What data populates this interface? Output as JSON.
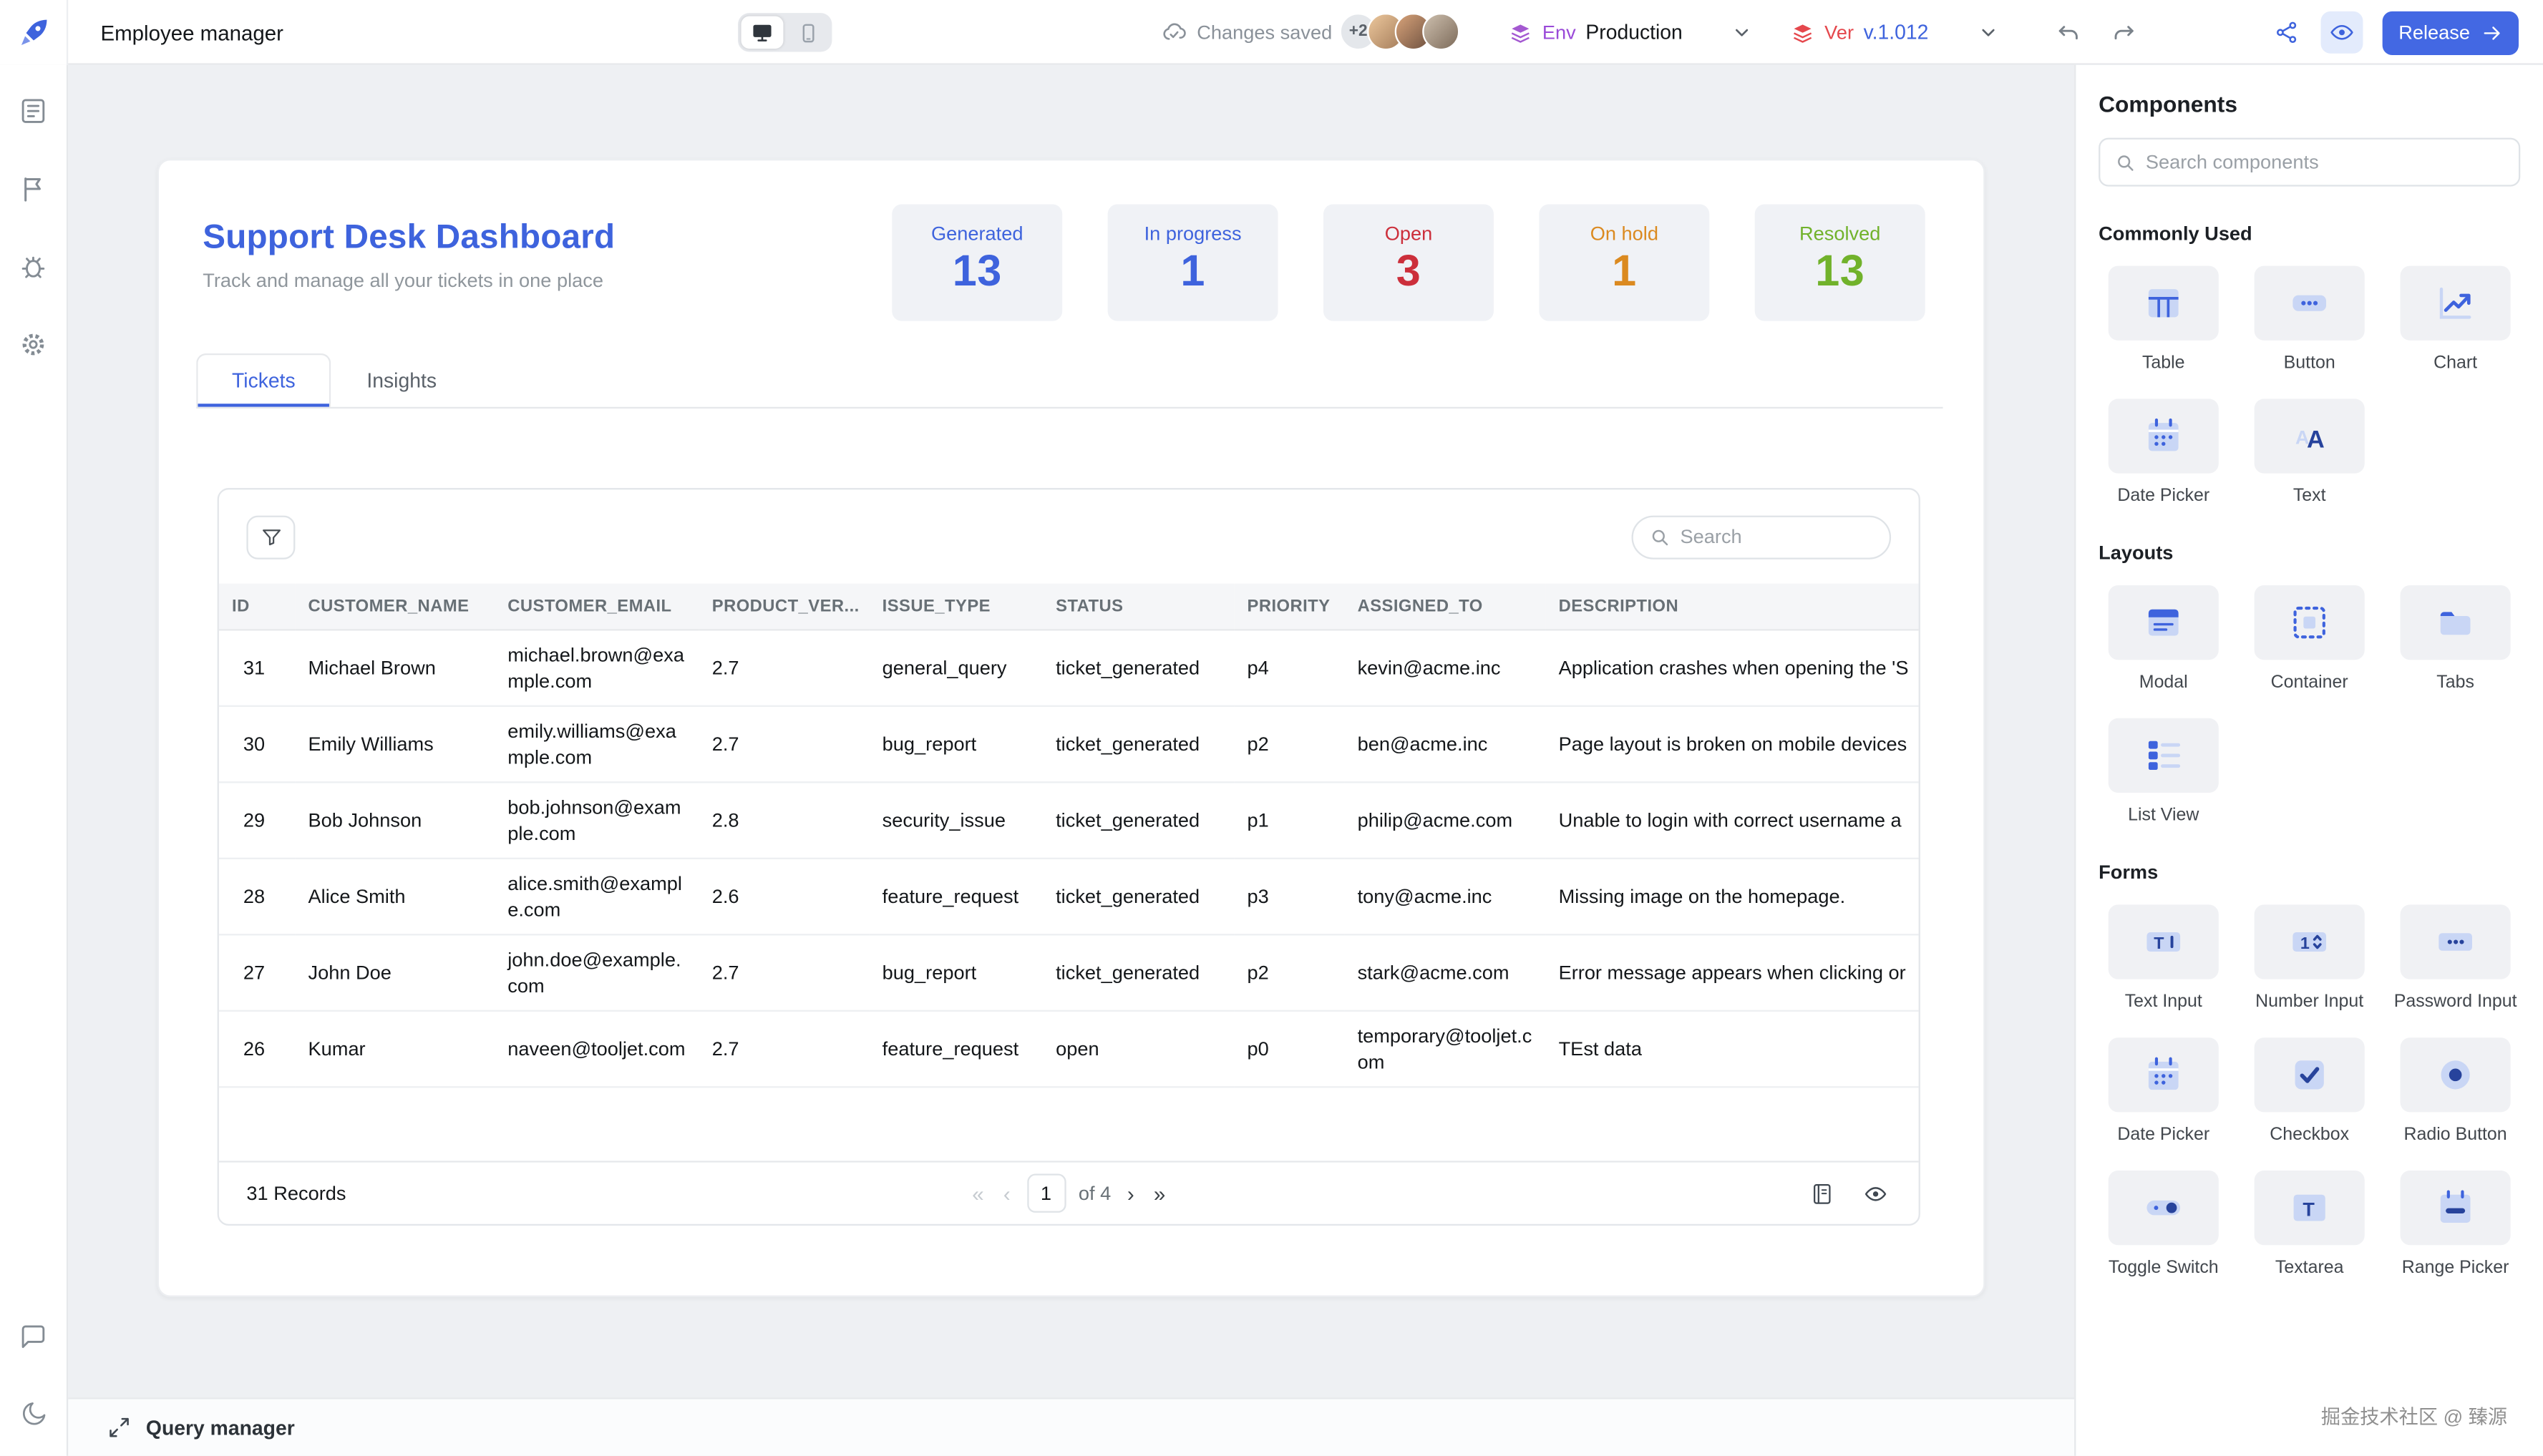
{
  "header": {
    "app_title": "Employee manager",
    "changes_saved": "Changes saved",
    "avatar_overflow": "+2",
    "env_label": "Env",
    "env_value": "Production",
    "ver_label": "Ver",
    "ver_value": "v.1.012",
    "release_label": "Release"
  },
  "canvas": {
    "page_title": "Support Desk Dashboard",
    "page_subtitle": "Track and manage all your tickets in one place",
    "stats": [
      {
        "label": "Generated",
        "value": "13",
        "color": "#3E63DD"
      },
      {
        "label": "In progress",
        "value": "1",
        "color": "#3E63DD"
      },
      {
        "label": "Open",
        "value": "3",
        "color": "#CC2F3B"
      },
      {
        "label": "On hold",
        "value": "1",
        "color": "#DB8A20"
      },
      {
        "label": "Resolved",
        "value": "13",
        "color": "#71B22B"
      }
    ],
    "tabs": [
      {
        "label": "Tickets",
        "active": true
      },
      {
        "label": "Insights",
        "active": false
      }
    ],
    "table": {
      "search_placeholder": "Search",
      "columns": [
        "ID",
        "CUSTOMER_NAME",
        "CUSTOMER_EMAIL",
        "PRODUCT_VER...",
        "ISSUE_TYPE",
        "STATUS",
        "PRIORITY",
        "ASSIGNED_TO",
        "DESCRIPTION"
      ],
      "rows": [
        {
          "id": "31",
          "name": "Michael Brown",
          "email": "michael.brown@example.com",
          "version": "2.7",
          "issue": "general_query",
          "status": "ticket_generated",
          "priority": "p4",
          "assigned": "kevin@acme.inc",
          "description": "Application crashes when opening the 'S"
        },
        {
          "id": "30",
          "name": "Emily Williams",
          "email": "emily.williams@example.com",
          "version": "2.7",
          "issue": "bug_report",
          "status": "ticket_generated",
          "priority": "p2",
          "assigned": "ben@acme.inc",
          "description": "Page layout is broken on mobile devices"
        },
        {
          "id": "29",
          "name": "Bob Johnson",
          "email": "bob.johnson@example.com",
          "version": "2.8",
          "issue": "security_issue",
          "status": "ticket_generated",
          "priority": "p1",
          "assigned": "philip@acme.com",
          "description": "Unable to login with correct username a"
        },
        {
          "id": "28",
          "name": "Alice Smith",
          "email": "alice.smith@example.com",
          "version": "2.6",
          "issue": "feature_request",
          "status": "ticket_generated",
          "priority": "p3",
          "assigned": "tony@acme.inc",
          "description": "Missing image on the homepage."
        },
        {
          "id": "27",
          "name": "John Doe",
          "email": "john.doe@example.com",
          "version": "2.7",
          "issue": "bug_report",
          "status": "ticket_generated",
          "priority": "p2",
          "assigned": "stark@acme.com",
          "description": "Error message appears when clicking or"
        },
        {
          "id": "26",
          "name": "Kumar",
          "email": "naveen@tooljet.com",
          "version": "2.7",
          "issue": "feature_request",
          "status": "open",
          "priority": "p0",
          "assigned": "temporary@tooljet.com",
          "description": "TEst data"
        }
      ],
      "records_text": "31 Records",
      "pagination": {
        "first": "«",
        "prev": "‹",
        "current": "1",
        "of_text": "of 4",
        "next": "›",
        "last": "»"
      }
    },
    "query_manager_label": "Query manager"
  },
  "components_panel": {
    "title": "Components",
    "search_placeholder": "Search components",
    "commonly_used": {
      "title": "Commonly Used",
      "items": [
        {
          "label": "Table",
          "icon": "table-icon"
        },
        {
          "label": "Button",
          "icon": "button-icon"
        },
        {
          "label": "Chart",
          "icon": "chart-icon"
        },
        {
          "label": "Date Picker",
          "icon": "datepicker-icon"
        },
        {
          "label": "Text",
          "icon": "text-icon"
        }
      ]
    },
    "layouts": {
      "title": "Layouts",
      "items": [
        {
          "label": "Modal",
          "icon": "modal-icon"
        },
        {
          "label": "Container",
          "icon": "container-icon"
        },
        {
          "label": "Tabs",
          "icon": "tabs-icon"
        },
        {
          "label": "List View",
          "icon": "listview-icon"
        }
      ]
    },
    "forms": {
      "title": "Forms",
      "items": [
        {
          "label": "Text Input",
          "icon": "textinput-icon"
        },
        {
          "label": "Number Input",
          "icon": "numberinput-icon"
        },
        {
          "label": "Password Input",
          "icon": "passwordinput-icon"
        },
        {
          "label": "Date Picker",
          "icon": "datepicker-icon"
        },
        {
          "label": "Checkbox",
          "icon": "checkbox-icon"
        },
        {
          "label": "Radio Button",
          "icon": "radiobutton-icon"
        },
        {
          "label": "Toggle Switch",
          "icon": "toggleswitch-icon"
        },
        {
          "label": "Textarea",
          "icon": "textarea-icon"
        },
        {
          "label": "Range Picker",
          "icon": "rangepicker-icon"
        }
      ]
    }
  },
  "watermark": "掘金技术社区 @ 臻源"
}
